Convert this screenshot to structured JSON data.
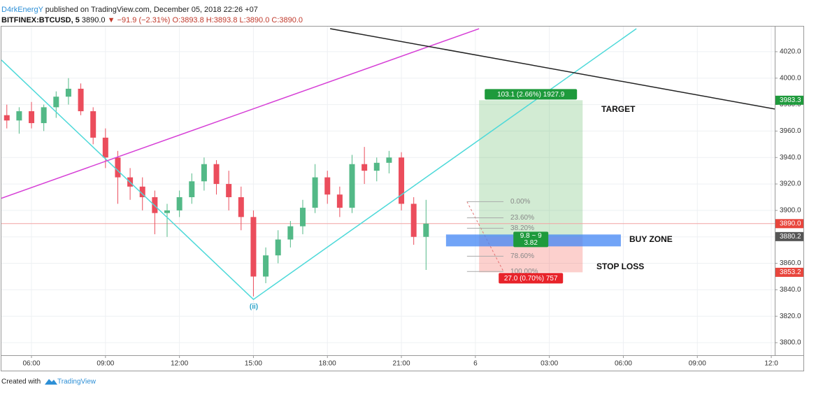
{
  "header": {
    "author": "D4rkEnergY",
    "published": "published on TradingView.com, December 05, 2018 22:26 +07",
    "symbol": "BITFINEX:BTCUSD, 5",
    "price": "3890.0",
    "change": "▼ −91.9 (−2.31%)",
    "open": "O:3893.8",
    "high": "H:3893.8",
    "low": "L:3890.0",
    "close": "C:3890.0"
  },
  "chart_data": {
    "type": "candlestick",
    "x": [
      5.0,
      5.5,
      6.0,
      6.5,
      7.0,
      7.5,
      8.0,
      8.5,
      9.0,
      9.5,
      10.0,
      10.5,
      11.0,
      11.5,
      12.0,
      12.5,
      13.0,
      13.5,
      14.0,
      14.5,
      15.0,
      15.5,
      16.0,
      16.5,
      17.0,
      17.5,
      18.0,
      18.5,
      19.0,
      19.5,
      20.0,
      20.5,
      21.0,
      21.5,
      22.0
    ],
    "open": [
      3972,
      3968,
      3975,
      3966,
      3978,
      3986,
      3992,
      3975,
      3955,
      3940,
      3925,
      3918,
      3910,
      3898,
      3900,
      3910,
      3922,
      3935,
      3920,
      3910,
      3895,
      3850,
      3866,
      3878,
      3888,
      3902,
      3925,
      3912,
      3902,
      3935,
      3930,
      3936,
      3940,
      3905,
      3880
    ],
    "high": [
      3980,
      3978,
      3982,
      3980,
      3990,
      4000,
      3996,
      3978,
      3962,
      3945,
      3932,
      3925,
      3915,
      3905,
      3915,
      3928,
      3940,
      3938,
      3930,
      3918,
      3900,
      3872,
      3885,
      3892,
      3908,
      3935,
      3930,
      3918,
      3942,
      3948,
      3940,
      3945,
      3944,
      3910,
      3908
    ],
    "low": [
      3962,
      3958,
      3962,
      3960,
      3970,
      3980,
      3972,
      3950,
      3932,
      3905,
      3908,
      3900,
      3882,
      3880,
      3895,
      3905,
      3915,
      3912,
      3900,
      3885,
      3835,
      3845,
      3860,
      3872,
      3882,
      3898,
      3905,
      3895,
      3898,
      3920,
      3922,
      3928,
      3900,
      3874,
      3855
    ],
    "close": [
      3968,
      3975,
      3966,
      3978,
      3986,
      3992,
      3975,
      3955,
      3940,
      3925,
      3918,
      3910,
      3898,
      3900,
      3910,
      3922,
      3935,
      3920,
      3910,
      3895,
      3850,
      3866,
      3878,
      3888,
      3902,
      3925,
      3912,
      3902,
      3935,
      3930,
      3936,
      3940,
      3905,
      3880,
      3890
    ],
    "up_color": "#53b987",
    "down_color": "#eb4d5c",
    "xlim": [
      4.78,
      36.14
    ],
    "xticks": [
      {
        "value": 6,
        "label": "06:00"
      },
      {
        "value": 9,
        "label": "09:00"
      },
      {
        "value": 12,
        "label": "12:00"
      },
      {
        "value": 15,
        "label": "15:00"
      },
      {
        "value": 18,
        "label": "18:00"
      },
      {
        "value": 21,
        "label": "21:00"
      },
      {
        "value": 24,
        "label": "6"
      },
      {
        "value": 27,
        "label": "03:00"
      },
      {
        "value": 30,
        "label": "06:00"
      },
      {
        "value": 33,
        "label": "09:00"
      },
      {
        "value": 36,
        "label": "12:0"
      }
    ],
    "ylim": [
      3790.5,
      4039
    ],
    "yticks": [
      {
        "value": 3800,
        "label": "3800.0"
      },
      {
        "value": 3820,
        "label": "3820.0"
      },
      {
        "value": 3840,
        "label": "3840.0"
      },
      {
        "value": 3860,
        "label": "3860.0"
      },
      {
        "value": 3880,
        "label": "3880.0"
      },
      {
        "value": 3900,
        "label": "3900.0"
      },
      {
        "value": 3920,
        "label": "3920.0"
      },
      {
        "value": 3940,
        "label": "3940.0"
      },
      {
        "value": 3960,
        "label": "3960.0"
      },
      {
        "value": 3980,
        "label": "3980.0"
      },
      {
        "value": 4000,
        "label": "4000.0"
      },
      {
        "value": 4020,
        "label": "4020.0"
      }
    ],
    "grid": true,
    "trend_lines": [
      {
        "color": "#4dd9d9",
        "x": [
          4.78,
          15.0,
          30.53
        ],
        "y": [
          4013.7,
          3832.7,
          4037.4
        ]
      },
      {
        "color": "#d63fd6",
        "x": [
          4.78,
          24.15
        ],
        "y": [
          3909.2,
          4037.4
        ]
      },
      {
        "color": "#222222",
        "x": [
          18.11,
          36.14
        ],
        "y": [
          4037.4,
          3976.7
        ]
      }
    ],
    "position": {
      "x_start": 24.15,
      "x_end": 28.35,
      "entry": 3880.2,
      "target": 3983.3,
      "stop": 3853.2,
      "target_label": "103.1 (2.66%) 1927.9",
      "stop_label": "27.0 (0.70%) 757"
    },
    "buy_zone": {
      "x_start": 22.81,
      "x_end": 29.9,
      "top": 3881.8,
      "bottom": 3872.8,
      "labels": [
        "9.8 ~ 9",
        "3.82"
      ]
    },
    "fib": {
      "x_start": 23.66,
      "x_end": 25.14,
      "levels": [
        {
          "value": 3906.6,
          "label": "0.00%"
        },
        {
          "value": 3894.4,
          "label": "23.60%"
        },
        {
          "value": 3886.5,
          "label": "38.20%"
        },
        {
          "value": 3865.4,
          "label": "78.60%"
        },
        {
          "value": 3853.8,
          "label": "100.00%"
        }
      ]
    },
    "price_labels": [
      {
        "value": 3983.3,
        "label": "3983.3",
        "color": "#1e9a3c",
        "line": false
      },
      {
        "value": 3890,
        "label": "3890.0",
        "color": "#e8453c",
        "line": true
      },
      {
        "value": 3880.2,
        "label": "3880.2",
        "color": "#555555",
        "line": false
      },
      {
        "value": 3853.2,
        "label": "3853.2",
        "color": "#e8453c",
        "line": false
      }
    ],
    "annotations": [
      "TARGET",
      "BUY ZONE",
      "STOP LOSS",
      "(ii)"
    ]
  },
  "footer": {
    "created": "Created with",
    "brand": "TradingView"
  }
}
